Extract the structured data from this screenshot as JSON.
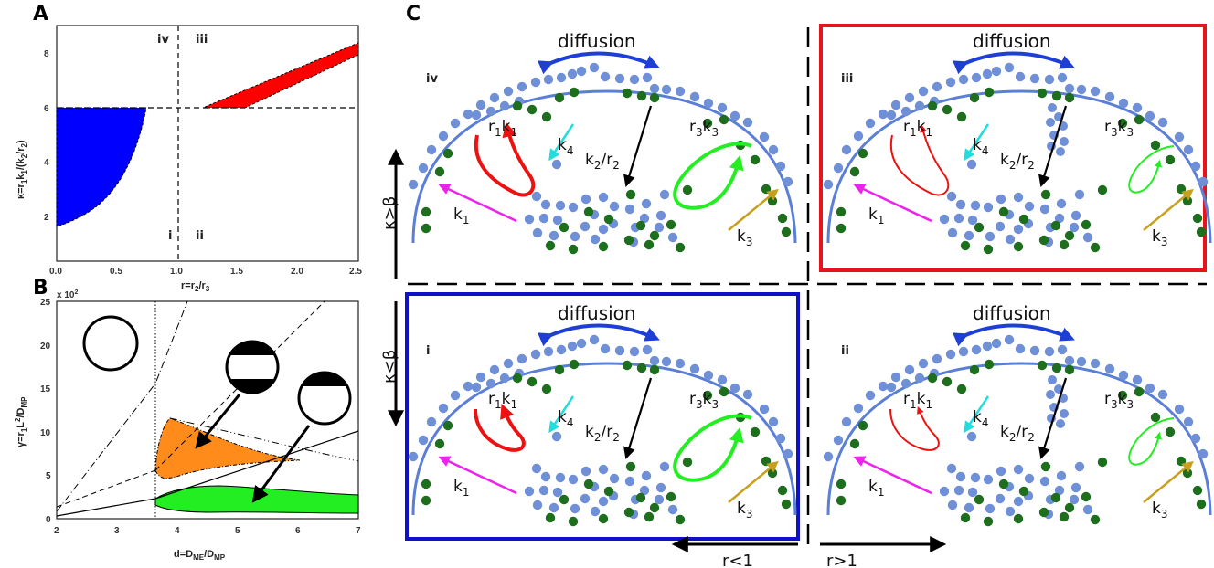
{
  "panel_labels": {
    "a": "A",
    "b": "B",
    "c": "C"
  },
  "panelA": {
    "y_ticks": [
      "8",
      "6",
      "4",
      "2"
    ],
    "x_ticks": [
      "0.0",
      "0.5",
      "1.0",
      "1.5",
      "2.0",
      "2.5"
    ],
    "ylabel_main": "κ=r",
    "ylabel_k": "k",
    "ylabel_r": "r",
    "ylabel_s1": "1",
    "ylabel_s2": "2",
    "xlabel_main": "r=r",
    "xlabel_s2": "2",
    "xlabel_s3": "3",
    "xlabel_mid": "/r",
    "ylabel_div": "/(k",
    "ylabel_slash": "/",
    "ylabel_close": ")",
    "quadrants": {
      "i": "i",
      "ii": "ii",
      "iii": "iii",
      "iv": "iv"
    },
    "colors": {
      "blue": "#0000ff",
      "red": "#ff0000"
    }
  },
  "panelB": {
    "y_ticks": [
      "25",
      "20",
      "15",
      "10",
      "5",
      "0"
    ],
    "x_ticks": [
      "2",
      "3",
      "4",
      "5",
      "6",
      "7"
    ],
    "multiplier": "x 10",
    "multiplier_exp": "2",
    "ylabel_main": "γ=r",
    "ylabel_s1": "1",
    "ylabel_L": "L",
    "ylabel_exp": "2",
    "ylabel_div": "/D",
    "ylabel_sub": "MP",
    "xlabel_main": "d=D",
    "xlabel_sub1": "ME",
    "xlabel_div": "/D",
    "xlabel_sub2": "MP",
    "colors": {
      "orange": "#ff8c1a",
      "green": "#22ee22"
    }
  },
  "panelC": {
    "diffusion": "diffusion",
    "k1": "k",
    "k1s": "1",
    "k3": "k",
    "k3s": "3",
    "k4": "k",
    "k4s": "4",
    "k2r2_k": "k",
    "k2r2_s": "2",
    "k2r2_slash": "/r",
    "k2r2_rs": "2",
    "r1k1_r": "r",
    "r1k1_s1": "1",
    "r1k1_k": "k",
    "r1k1_s2": "1",
    "r3k3_r": "r",
    "r3k3_s1": "3",
    "r3k3_k": "k",
    "r3k3_s2": "3",
    "quadrants": {
      "i": "i",
      "ii": "ii",
      "iii": "iii",
      "iv": "iv"
    },
    "kappa_gt": "κ>β",
    "kappa_lt": "κ<β",
    "r_lt": "r<1",
    "r_gt": "r>1",
    "colors": {
      "membrane": "#5b7fd6",
      "blue_dot": "#6f8fd6",
      "green_dot": "#1d6e1d",
      "frame_red": "#e8141b",
      "frame_blue": "#1010c8"
    }
  }
}
